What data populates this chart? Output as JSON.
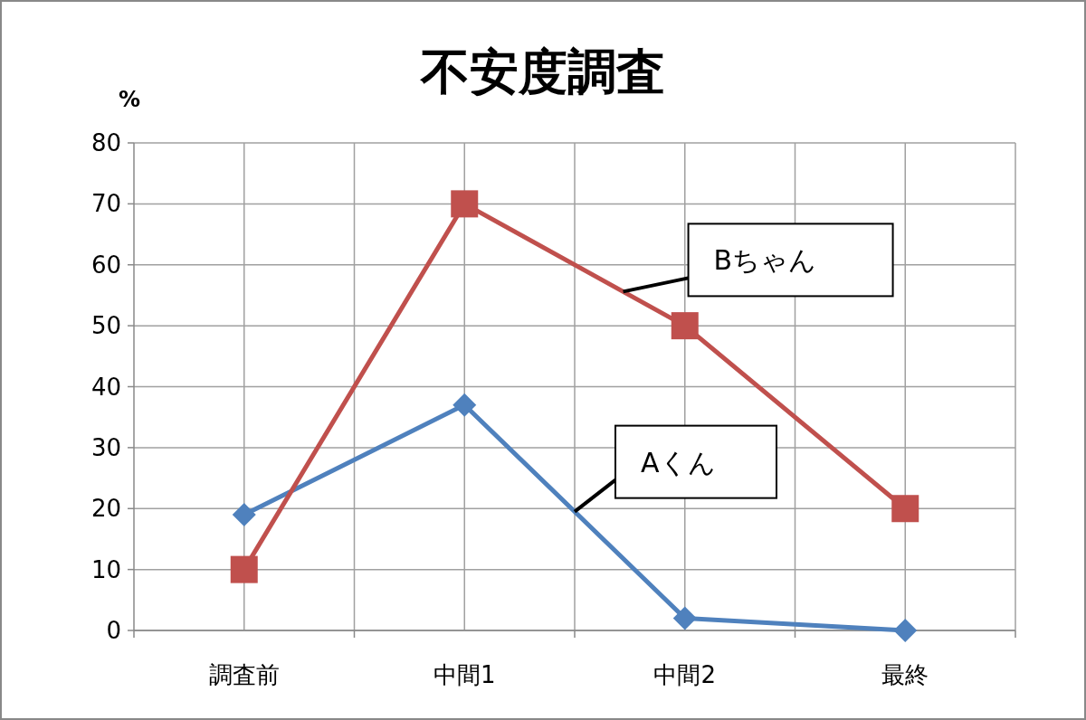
{
  "chart_data": {
    "type": "line",
    "title": "不安度調査",
    "ylabel": "%",
    "categories": [
      "調査前",
      "中間1",
      "中間2",
      "最終"
    ],
    "series": [
      {
        "name": "Aくん",
        "color": "#4f81bd",
        "marker": "diamond",
        "values": [
          19,
          37,
          2,
          0
        ]
      },
      {
        "name": "Bちゃん",
        "color": "#c0504d",
        "marker": "square",
        "values": [
          10,
          70,
          50,
          20
        ]
      }
    ],
    "ylim": [
      0,
      80
    ],
    "yticks": [
      0,
      10,
      20,
      30,
      40,
      50,
      60,
      70,
      80
    ],
    "grid": true
  }
}
